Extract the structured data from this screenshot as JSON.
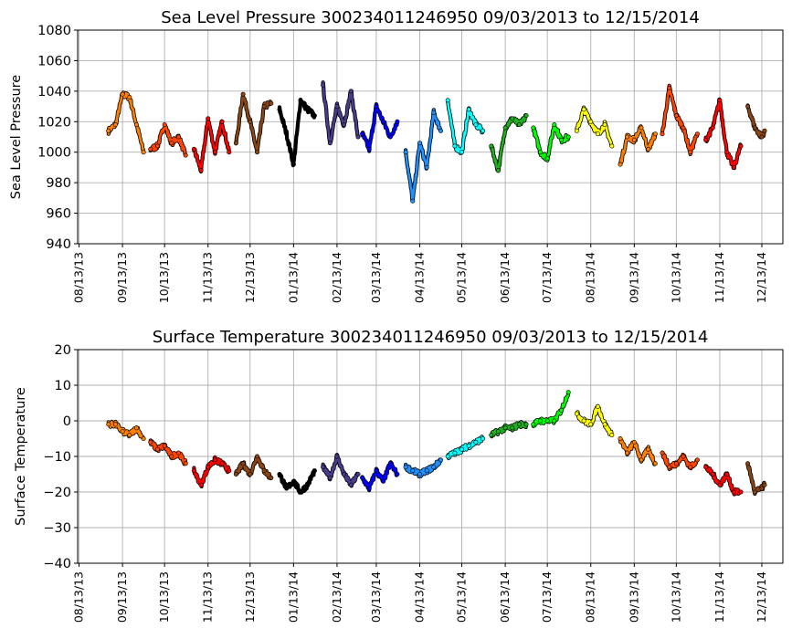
{
  "chart_data": [
    {
      "type": "scatter",
      "title": "Sea Level Pressure 300234011246950  09/03/2013 to 12/15/2014",
      "xlabel": "",
      "ylabel": "Sea Level Pressure",
      "ylim": [
        940,
        1080
      ],
      "yticks": [
        940,
        960,
        980,
        1000,
        1020,
        1040,
        1060,
        1080
      ],
      "xlim": [
        "2013-08-12",
        "2014-12-28"
      ],
      "xticks": [
        "08/13/13",
        "09/13/13",
        "10/13/13",
        "11/13/13",
        "12/13/13",
        "01/13/14",
        "02/13/14",
        "03/13/14",
        "04/13/14",
        "05/13/14",
        "06/13/14",
        "07/13/14",
        "08/13/14",
        "09/13/14",
        "10/13/14",
        "11/13/14",
        "12/13/14"
      ],
      "grid": true,
      "series": [
        {
          "color": "#ff8000",
          "x": [
            "2013-09-03",
            "2013-09-08",
            "2013-09-13",
            "2013-09-18",
            "2013-09-23",
            "2013-09-28"
          ],
          "y": [
            1014,
            1018,
            1038,
            1036,
            1018,
            1000
          ]
        },
        {
          "color": "#ff4500",
          "x": [
            "2013-10-03",
            "2013-10-08",
            "2013-10-13",
            "2013-10-18",
            "2013-10-23",
            "2013-10-28"
          ],
          "y": [
            1002,
            1004,
            1018,
            1006,
            1010,
            998
          ]
        },
        {
          "color": "#ff0000",
          "x": [
            "2013-11-03",
            "2013-11-08",
            "2013-11-13",
            "2013-11-18",
            "2013-11-23",
            "2013-11-28"
          ],
          "y": [
            1002,
            988,
            1022,
            1000,
            1020,
            1000
          ]
        },
        {
          "color": "#8b4513",
          "x": [
            "2013-12-03",
            "2013-12-08",
            "2013-12-13",
            "2013-12-18",
            "2013-12-23",
            "2013-12-28"
          ],
          "y": [
            1006,
            1038,
            1020,
            1000,
            1030,
            1032
          ]
        },
        {
          "color": "#000000",
          "x": [
            "2014-01-03",
            "2014-01-08",
            "2014-01-13",
            "2014-01-18",
            "2014-01-23",
            "2014-01-28"
          ],
          "y": [
            1028,
            1012,
            992,
            1034,
            1028,
            1024
          ]
        },
        {
          "color": "#483d8b",
          "x": [
            "2014-02-03",
            "2014-02-08",
            "2014-02-13",
            "2014-02-18",
            "2014-02-23",
            "2014-02-28"
          ],
          "y": [
            1044,
            1006,
            1030,
            1018,
            1040,
            1010
          ]
        },
        {
          "color": "#0000ff",
          "x": [
            "2014-03-03",
            "2014-03-08",
            "2014-03-13",
            "2014-03-18",
            "2014-03-23",
            "2014-03-28"
          ],
          "y": [
            1012,
            1002,
            1030,
            1020,
            1010,
            1020
          ]
        },
        {
          "color": "#1e90ff",
          "x": [
            "2014-04-03",
            "2014-04-08",
            "2014-04-13",
            "2014-04-18",
            "2014-04-23",
            "2014-04-28"
          ],
          "y": [
            1000,
            968,
            1006,
            990,
            1026,
            1014
          ]
        },
        {
          "color": "#00ffff",
          "x": [
            "2014-05-03",
            "2014-05-08",
            "2014-05-13",
            "2014-05-18",
            "2014-05-23",
            "2014-05-28"
          ],
          "y": [
            1034,
            1004,
            1000,
            1028,
            1018,
            1014
          ]
        },
        {
          "color": "#20b020",
          "x": [
            "2014-06-03",
            "2014-06-08",
            "2014-06-13",
            "2014-06-18",
            "2014-06-23",
            "2014-06-28"
          ],
          "y": [
            1004,
            988,
            1016,
            1022,
            1018,
            1024
          ]
        },
        {
          "color": "#00ff00",
          "x": [
            "2014-07-03",
            "2014-07-08",
            "2014-07-13",
            "2014-07-18",
            "2014-07-23",
            "2014-07-28"
          ],
          "y": [
            1016,
            1000,
            996,
            1018,
            1008,
            1010
          ]
        },
        {
          "color": "#ffff00",
          "x": [
            "2014-08-03",
            "2014-08-08",
            "2014-08-13",
            "2014-08-18",
            "2014-08-23",
            "2014-08-28"
          ],
          "y": [
            1014,
            1028,
            1020,
            1012,
            1018,
            1004
          ]
        },
        {
          "color": "#ff8000",
          "x": [
            "2014-09-03",
            "2014-09-08",
            "2014-09-13",
            "2014-09-18",
            "2014-09-23",
            "2014-09-28"
          ],
          "y": [
            992,
            1010,
            1008,
            1016,
            1002,
            1012
          ]
        },
        {
          "color": "#ff4500",
          "x": [
            "2014-10-03",
            "2014-10-08",
            "2014-10-13",
            "2014-10-18",
            "2014-10-23",
            "2014-10-28"
          ],
          "y": [
            1012,
            1042,
            1024,
            1016,
            1000,
            1012
          ]
        },
        {
          "color": "#ff0000",
          "x": [
            "2014-11-03",
            "2014-11-08",
            "2014-11-13",
            "2014-11-18",
            "2014-11-23",
            "2014-11-28"
          ],
          "y": [
            1008,
            1016,
            1034,
            1000,
            990,
            1004
          ]
        },
        {
          "color": "#8b4513",
          "x": [
            "2014-12-03",
            "2014-12-08",
            "2014-12-13",
            "2014-12-15"
          ],
          "y": [
            1030,
            1016,
            1010,
            1014
          ]
        }
      ]
    },
    {
      "type": "scatter",
      "title": "Surface Temperature 300234011246950  09/03/2013 to 12/15/2014",
      "xlabel": "",
      "ylabel": "Surface Temperature",
      "ylim": [
        -40,
        20
      ],
      "yticks": [
        -40,
        -30,
        -20,
        -10,
        0,
        10,
        20
      ],
      "ytick_labels": [
        "−40",
        "−30",
        "−20",
        "−10",
        "0",
        "10",
        "20"
      ],
      "xlim": [
        "2013-08-12",
        "2014-12-28"
      ],
      "xticks": [
        "08/13/13",
        "09/13/13",
        "10/13/13",
        "11/13/13",
        "12/13/13",
        "01/13/14",
        "02/13/14",
        "03/13/14",
        "04/13/14",
        "05/13/14",
        "06/13/14",
        "07/13/14",
        "08/13/14",
        "09/13/14",
        "10/13/14",
        "11/13/14",
        "12/13/14"
      ],
      "grid": true,
      "series": [
        {
          "color": "#ff8000",
          "x": [
            "2013-09-03",
            "2013-09-08",
            "2013-09-13",
            "2013-09-18",
            "2013-09-23",
            "2013-09-28"
          ],
          "y": [
            -1,
            -1,
            -3,
            -4,
            -2,
            -5
          ]
        },
        {
          "color": "#ff4500",
          "x": [
            "2013-10-03",
            "2013-10-08",
            "2013-10-13",
            "2013-10-18",
            "2013-10-23",
            "2013-10-28"
          ],
          "y": [
            -6,
            -8,
            -7,
            -10,
            -9,
            -12
          ]
        },
        {
          "color": "#ff0000",
          "x": [
            "2013-11-03",
            "2013-11-08",
            "2013-11-13",
            "2013-11-18",
            "2013-11-23",
            "2013-11-28"
          ],
          "y": [
            -14,
            -18,
            -13,
            -11,
            -12,
            -14
          ]
        },
        {
          "color": "#8b4513",
          "x": [
            "2013-12-03",
            "2013-12-08",
            "2013-12-13",
            "2013-12-18",
            "2013-12-23",
            "2013-12-28"
          ],
          "y": [
            -15,
            -12,
            -15,
            -10,
            -14,
            -16
          ]
        },
        {
          "color": "#000000",
          "x": [
            "2014-01-03",
            "2014-01-08",
            "2014-01-13",
            "2014-01-18",
            "2014-01-23",
            "2014-01-28"
          ],
          "y": [
            -15,
            -19,
            -17,
            -20,
            -18,
            -14
          ]
        },
        {
          "color": "#483d8b",
          "x": [
            "2014-02-03",
            "2014-02-08",
            "2014-02-13",
            "2014-02-18",
            "2014-02-23",
            "2014-02-28"
          ],
          "y": [
            -13,
            -16,
            -10,
            -15,
            -18,
            -15
          ]
        },
        {
          "color": "#0000ff",
          "x": [
            "2014-03-03",
            "2014-03-08",
            "2014-03-13",
            "2014-03-18",
            "2014-03-23",
            "2014-03-28"
          ],
          "y": [
            -16,
            -19,
            -14,
            -17,
            -12,
            -15
          ]
        },
        {
          "color": "#1e90ff",
          "x": [
            "2014-04-03",
            "2014-04-08",
            "2014-04-13",
            "2014-04-18",
            "2014-04-23",
            "2014-04-28"
          ],
          "y": [
            -13,
            -14,
            -15,
            -14,
            -13,
            -11
          ]
        },
        {
          "color": "#00ffff",
          "x": [
            "2014-05-03",
            "2014-05-08",
            "2014-05-13",
            "2014-05-18",
            "2014-05-23",
            "2014-05-28"
          ],
          "y": [
            -10,
            -9,
            -8,
            -7,
            -6,
            -5
          ]
        },
        {
          "color": "#20b020",
          "x": [
            "2014-06-03",
            "2014-06-08",
            "2014-06-13",
            "2014-06-18",
            "2014-06-23",
            "2014-06-28"
          ],
          "y": [
            -4,
            -3,
            -2,
            -2,
            -1,
            -1
          ]
        },
        {
          "color": "#00ff00",
          "x": [
            "2014-07-03",
            "2014-07-08",
            "2014-07-13",
            "2014-07-18",
            "2014-07-23",
            "2014-07-28"
          ],
          "y": [
            -1,
            0,
            0,
            0,
            3,
            8
          ]
        },
        {
          "color": "#ffff00",
          "x": [
            "2014-08-03",
            "2014-08-08",
            "2014-08-13",
            "2014-08-18",
            "2014-08-23",
            "2014-08-28"
          ],
          "y": [
            2,
            0,
            -1,
            4,
            -1,
            -4
          ]
        },
        {
          "color": "#ff8000",
          "x": [
            "2014-09-03",
            "2014-09-08",
            "2014-09-13",
            "2014-09-18",
            "2014-09-23",
            "2014-09-28"
          ],
          "y": [
            -5,
            -9,
            -6,
            -11,
            -8,
            -12
          ]
        },
        {
          "color": "#ff4500",
          "x": [
            "2014-10-03",
            "2014-10-08",
            "2014-10-13",
            "2014-10-18",
            "2014-10-23",
            "2014-10-28"
          ],
          "y": [
            -9,
            -13,
            -12,
            -10,
            -13,
            -11
          ]
        },
        {
          "color": "#ff0000",
          "x": [
            "2014-11-03",
            "2014-11-08",
            "2014-11-13",
            "2014-11-18",
            "2014-11-23",
            "2014-11-28"
          ],
          "y": [
            -13,
            -15,
            -18,
            -15,
            -20,
            -20
          ]
        },
        {
          "color": "#8b4513",
          "x": [
            "2014-12-03",
            "2014-12-08",
            "2014-12-13",
            "2014-12-15"
          ],
          "y": [
            -12,
            -20,
            -19,
            -18
          ]
        }
      ]
    }
  ]
}
